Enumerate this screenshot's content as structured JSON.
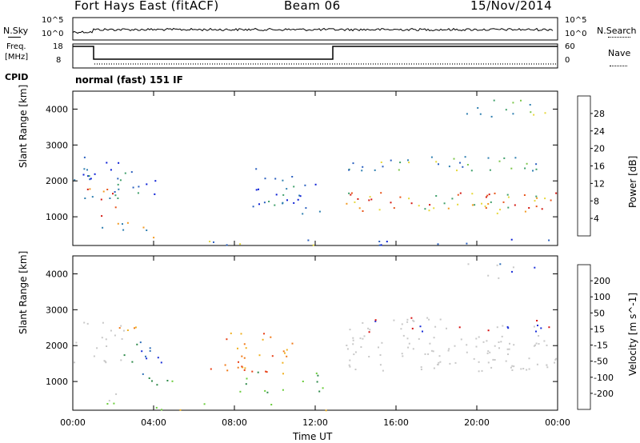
{
  "header": {
    "station": "Fort Hays East (fitACF)",
    "beam": "Beam 06",
    "date": "15/Nov/2014"
  },
  "noise_panel": {
    "left_label": "N.Sky",
    "right_label": "N.Search",
    "ticks": [
      "10^5",
      "10^0"
    ]
  },
  "freq_panel": {
    "left_label_1": "Freq.",
    "left_label_2": "[MHz]",
    "left_ticks": [
      "18",
      "8"
    ],
    "right_label": "Nave",
    "right_ticks": [
      "60",
      "0"
    ],
    "cpid_label": "CPID"
  },
  "cpid": {
    "mode": "normal (fast) 151 IF"
  },
  "chart_data": [
    {
      "type": "heatmap",
      "name": "power",
      "ylabel": "Slant Range [km]",
      "ylim": [
        200,
        4500
      ],
      "yticks": [
        "1000",
        "2000",
        "3000",
        "4000"
      ],
      "colorbar_label": "Power [dB]",
      "colorbar_ticks": [
        "28",
        "24",
        "20",
        "16",
        "12",
        "8",
        "4"
      ],
      "colors": [
        "#0b1fd6",
        "#2a5fbf",
        "#2f7fb0",
        "#3fa06a",
        "#7cc64a",
        "#e6d83a",
        "#f29a22",
        "#e8541a",
        "#d41a12"
      ]
    },
    {
      "type": "heatmap",
      "name": "velocity",
      "ylabel": "Slant Range [km]",
      "ylim": [
        200,
        4500
      ],
      "yticks": [
        "1000",
        "2000",
        "3000",
        "4000"
      ],
      "colorbar_label": "Velocity [m s^-1]",
      "colorbar_ticks": [
        "200",
        "100",
        "50",
        "15",
        "-15",
        "-50",
        "-100",
        "-200"
      ],
      "colors": [
        "#1a2fd8",
        "#2f6fb8",
        "#2e8a4a",
        "#6acc3a",
        "#c8c8c8",
        "#c8c8c8",
        "#f0b020",
        "#f07a18",
        "#e84016",
        "#d81010"
      ]
    }
  ],
  "time_axis": {
    "label": "Time UT",
    "ticks": [
      "00:00",
      "04:00",
      "08:00",
      "12:00",
      "16:00",
      "20:00",
      "00:00"
    ]
  }
}
